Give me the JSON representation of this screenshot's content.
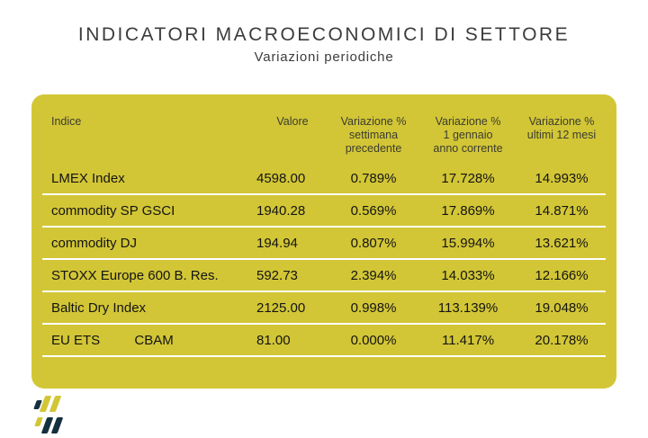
{
  "header": {
    "title": "INDICATORI MACROECONOMICI DI SETTORE",
    "subtitle": "Variazioni periodiche"
  },
  "colors": {
    "card_background": "#d2c636",
    "row_separator": "#ffffff",
    "title_text": "#3c3c3c",
    "header_text": "#3c3c30",
    "cell_text": "#141414",
    "logo_navy": "#15303f",
    "logo_gold": "#d2c636"
  },
  "table": {
    "columns": [
      {
        "label": "Indice"
      },
      {
        "label": "Valore"
      },
      {
        "label": "Variazione %\nsettimana\nprecedente"
      },
      {
        "label": "Variazione %\n1 gennaio\nanno corrente"
      },
      {
        "label": "Variazione %\nultimi 12 mesi"
      }
    ],
    "rows": [
      {
        "indice": "LMEX Index",
        "valore": "4598.00",
        "var_settimana": "0.789%",
        "var_anno": "17.728%",
        "var_12_mesi": "14.993%"
      },
      {
        "indice": "commodity SP GSCI",
        "valore": "1940.28",
        "var_settimana": "0.569%",
        "var_anno": "17.869%",
        "var_12_mesi": "14.871%"
      },
      {
        "indice": "commodity DJ",
        "valore": "194.94",
        "var_settimana": "0.807%",
        "var_anno": "15.994%",
        "var_12_mesi": "13.621%"
      },
      {
        "indice": "STOXX Europe 600 B. Res.",
        "valore": "592.73",
        "var_settimana": "2.394%",
        "var_anno": "14.033%",
        "var_12_mesi": "12.166%"
      },
      {
        "indice": "Baltic Dry Index",
        "valore": "2125.00",
        "var_settimana": "0.998%",
        "var_anno": "113.139%",
        "var_12_mesi": "19.048%"
      },
      {
        "indice": "EU ETS",
        "indice2": "CBAM",
        "valore": "81.00",
        "var_settimana": "0.000%",
        "var_anno": "11.417%",
        "var_12_mesi": "20.178%"
      }
    ]
  },
  "chart_data": {
    "type": "table",
    "title": "INDICATORI MACROECONOMICI DI SETTORE",
    "subtitle": "Variazioni periodiche",
    "columns": [
      "Indice",
      "Valore",
      "Variazione % settimana precedente",
      "Variazione % 1 gennaio anno corrente",
      "Variazione % ultimi 12 mesi"
    ],
    "rows": [
      [
        "LMEX Index",
        4598.0,
        "0.789%",
        "17.728%",
        "14.993%"
      ],
      [
        "commodity SP GSCI",
        1940.28,
        "0.569%",
        "17.869%",
        "14.871%"
      ],
      [
        "commodity DJ",
        194.94,
        "0.807%",
        "15.994%",
        "13.621%"
      ],
      [
        "STOXX Europe 600 B. Res.",
        592.73,
        "2.394%",
        "14.033%",
        "12.166%"
      ],
      [
        "Baltic Dry Index",
        2125.0,
        "0.998%",
        "113.139%",
        "19.048%"
      ],
      [
        "EU ETS CBAM",
        81.0,
        "0.000%",
        "11.417%",
        "20.178%"
      ]
    ]
  }
}
